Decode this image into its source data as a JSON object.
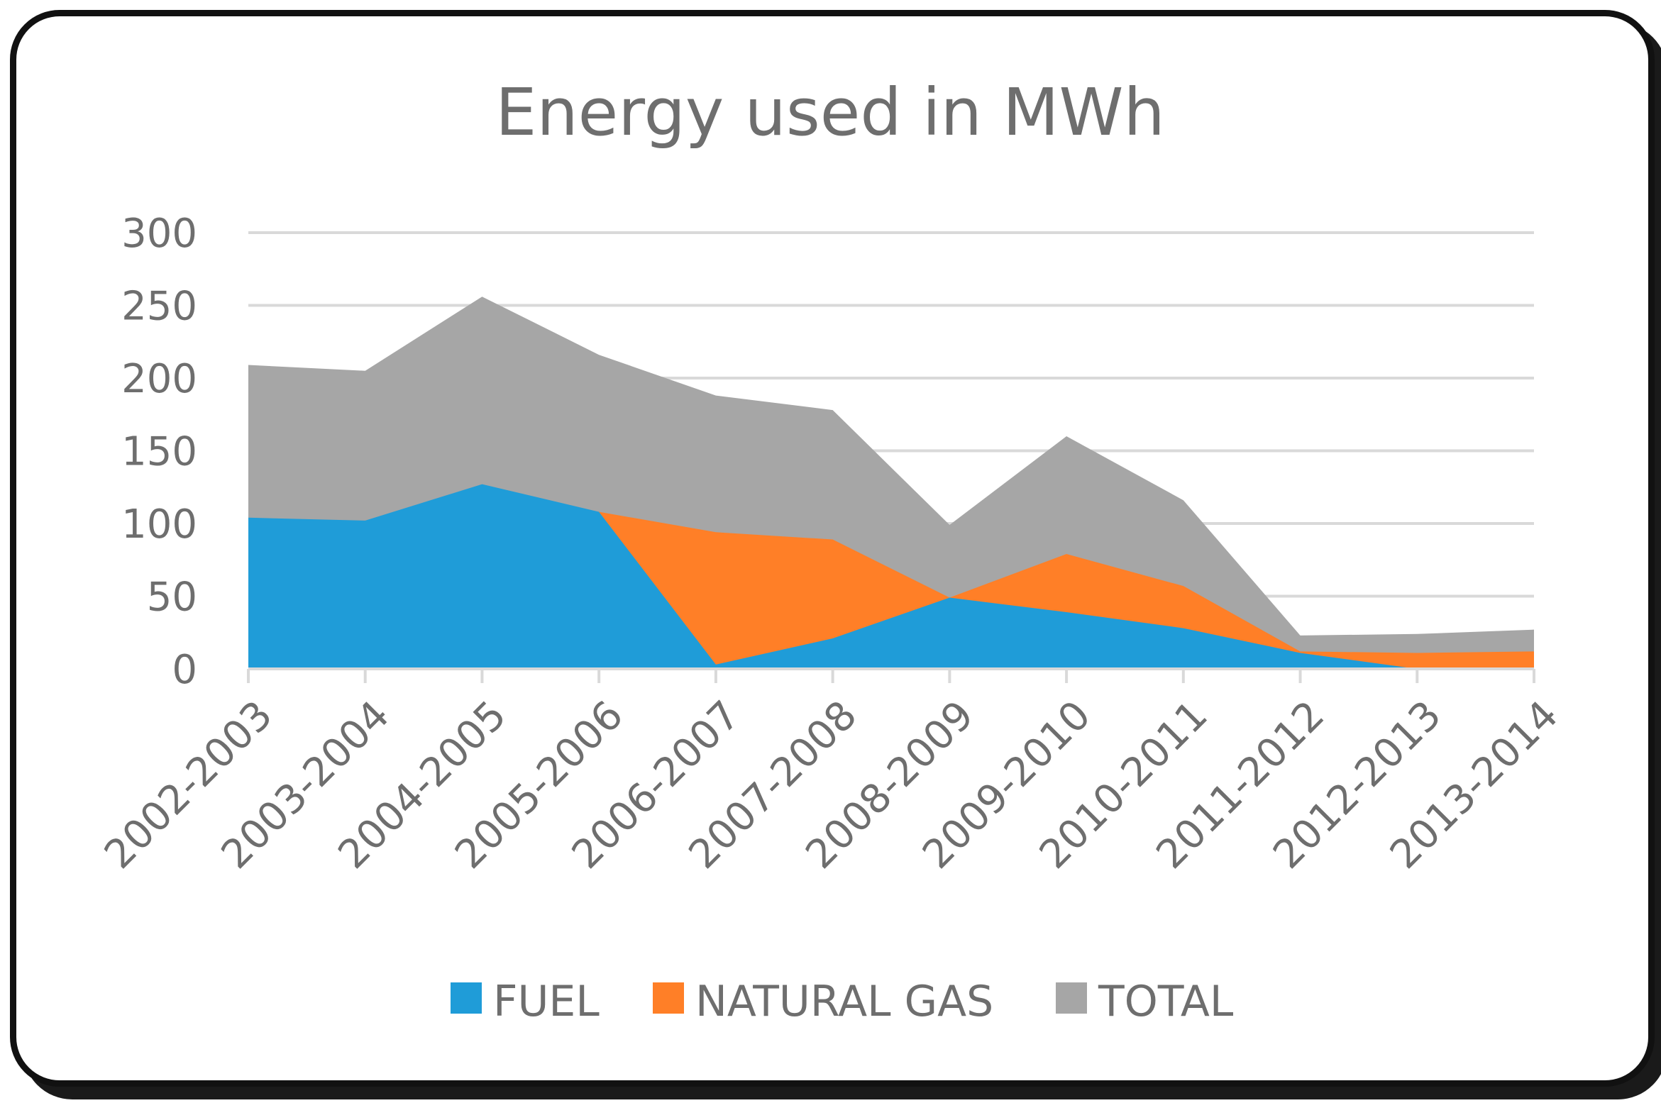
{
  "chart_data": {
    "type": "area",
    "title": "Energy used in MWh",
    "xlabel": "",
    "ylabel": "",
    "ylim": [
      0,
      300
    ],
    "yticks": [
      0,
      50,
      100,
      150,
      200,
      250,
      300
    ],
    "grid": true,
    "legend_position": "bottom",
    "categories": [
      "2002-2003",
      "2003-2004",
      "2004-2005",
      "2005-2006",
      "2006-2007",
      "2007-2008",
      "2008-2009",
      "2009-2010",
      "2010-2011",
      "2011-2012",
      "2012-2013",
      "2013-2014"
    ],
    "series": [
      {
        "name": "FUEL",
        "color": "#1f9cd8",
        "values": [
          104,
          102,
          127,
          108,
          3,
          21,
          49,
          39,
          28,
          11,
          0,
          0
        ]
      },
      {
        "name": "NATURAL GAS",
        "color": "#ff7f27",
        "values": [
          0,
          0,
          0,
          108,
          94,
          89,
          49,
          79,
          57,
          12,
          11,
          12
        ]
      },
      {
        "name": "TOTAL",
        "color": "#a6a6a6",
        "values": [
          209,
          205,
          256,
          216,
          188,
          178,
          99,
          160,
          116,
          23,
          24,
          27
        ]
      }
    ]
  }
}
